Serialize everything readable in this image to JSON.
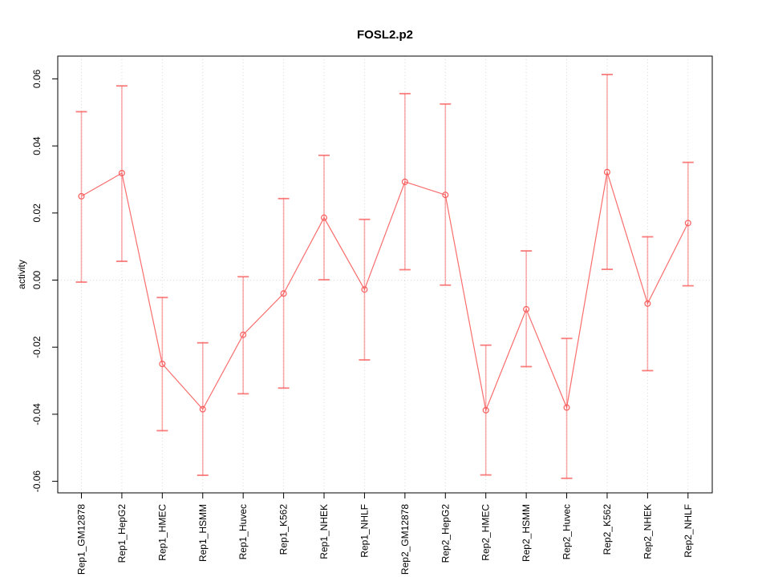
{
  "chart_data": {
    "type": "line",
    "title": "FOSL2.p2",
    "ylabel": "activity",
    "xlabel": "",
    "legend": "none",
    "marker": "open-circle",
    "categories": [
      "Rep1_GM12878",
      "Rep1_HepG2",
      "Rep1_HMEC",
      "Rep1_HSMM",
      "Rep1_Huvec",
      "Rep1_K562",
      "Rep1_NHEK",
      "Rep1_NHLF",
      "Rep2_GM12878",
      "Rep2_HepG2",
      "Rep2_HMEC",
      "Rep2_HSMM",
      "Rep2_Huvec",
      "Rep2_K562",
      "Rep2_NHEK",
      "Rep2_NHLF"
    ],
    "series": [
      {
        "name": "activity",
        "values": [
          0.025,
          0.0319,
          -0.025,
          -0.0385,
          -0.0163,
          -0.004,
          0.0186,
          -0.0028,
          0.0293,
          0.0254,
          -0.0388,
          -0.0087,
          -0.038,
          0.0322,
          -0.007,
          0.017
        ],
        "err_lo": [
          -0.0006,
          0.0056,
          -0.0449,
          -0.0582,
          -0.0339,
          -0.0322,
          0.0001,
          -0.0238,
          0.0031,
          -0.0015,
          -0.0581,
          -0.0258,
          -0.0591,
          0.0032,
          -0.027,
          -0.0017
        ],
        "err_hi": [
          0.0502,
          0.0579,
          -0.0052,
          -0.0187,
          0.001,
          0.0243,
          0.0372,
          0.0181,
          0.0556,
          0.0525,
          -0.0194,
          0.0087,
          -0.0174,
          0.0613,
          0.0129,
          0.0351
        ]
      }
    ],
    "yticks": [
      -0.06,
      -0.04,
      -0.02,
      0,
      0.02,
      0.04,
      0.06
    ],
    "ytick_labels": [
      "-0.06",
      "-0.04",
      "-0.02",
      "0.00",
      "0.02",
      "0.04",
      "0.06"
    ],
    "ylim": [
      -0.0634,
      0.0668
    ],
    "grid": {
      "vertical_per_category": true,
      "zero_line_dotted": true
    },
    "colors": {
      "series": "#f95d5d",
      "error_bar": "#f95d5d",
      "grid": "#d9d9d9",
      "axis": "#000000"
    }
  }
}
